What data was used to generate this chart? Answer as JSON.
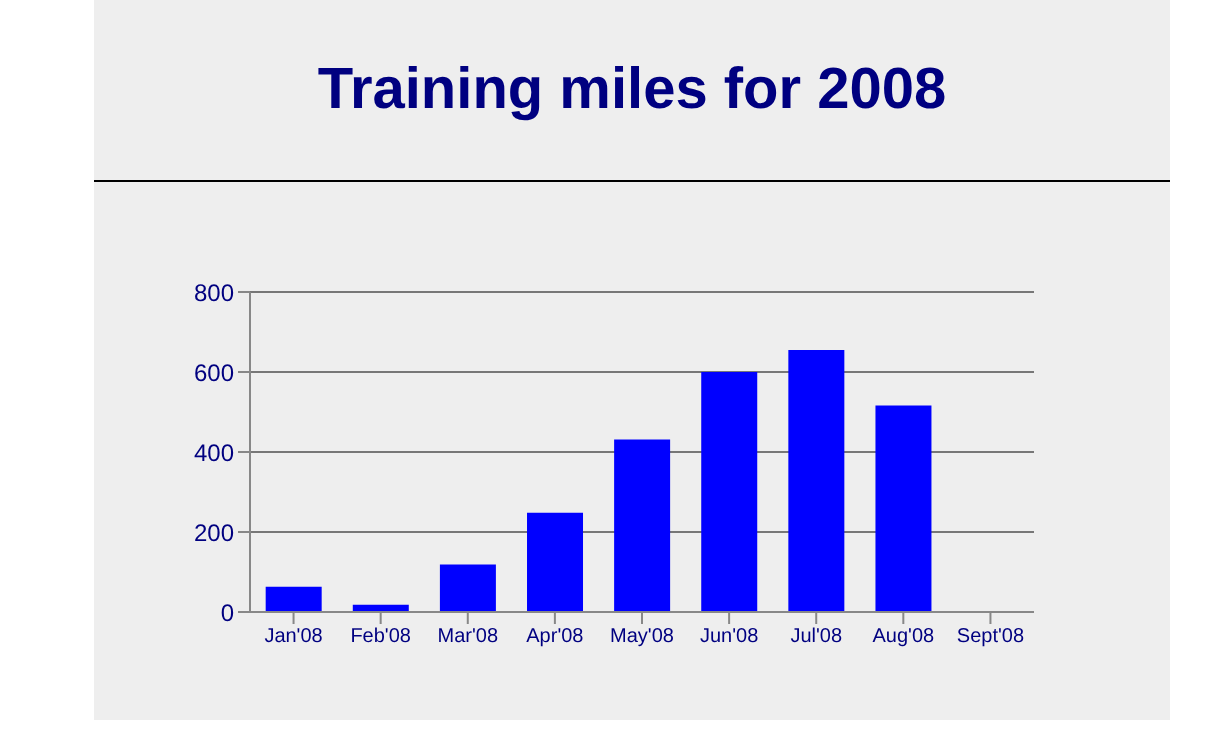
{
  "chart_data": {
    "type": "bar",
    "title": "Training miles for 2008",
    "categories": [
      "Jan'08",
      "Feb'08",
      "Mar'08",
      "Apr'08",
      "May'08",
      "Jun'08",
      "Jul'08",
      "Aug'08",
      "Sept'08"
    ],
    "values": [
      63,
      18,
      119,
      248,
      431,
      600,
      655,
      516,
      0
    ],
    "color": "#0000ff",
    "ylim": [
      0,
      800
    ],
    "yticks": [
      0,
      200,
      400,
      600,
      800
    ],
    "grid": "y"
  }
}
